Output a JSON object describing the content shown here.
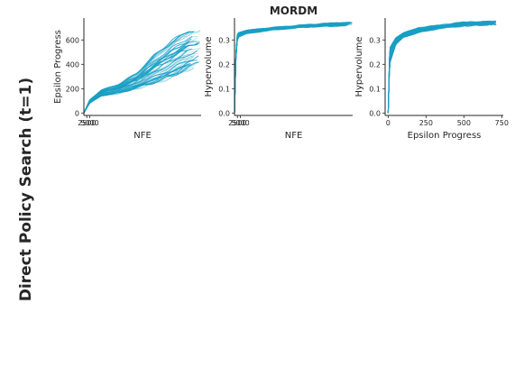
{
  "figure": {
    "row_label": "Direct Policy Search (t=1)",
    "line_color": "#1a9fc4"
  },
  "chart_data": [
    {
      "type": "line",
      "title": "",
      "xlabel": "NFE",
      "ylabel": "Epsilon Progress",
      "xlim": [
        0,
        100000
      ],
      "ylim": [
        -20,
        780
      ],
      "xticks": [
        2500,
        5000
      ],
      "xtick_labels": [
        "2500",
        "5000"
      ],
      "yticks": [
        0,
        200,
        400,
        600
      ],
      "ytick_labels": [
        "0",
        "200",
        "400",
        "600"
      ],
      "n_seeds": 50,
      "series_summary": {
        "x": [
          0,
          5000,
          15000,
          30000,
          45000,
          60000,
          75000,
          90000,
          100000
        ],
        "y_low": [
          0,
          80,
          140,
          160,
          200,
          240,
          290,
          360,
          400
        ],
        "y_high": [
          0,
          110,
          190,
          240,
          330,
          480,
          600,
          690,
          720
        ]
      }
    },
    {
      "type": "line",
      "title": "MORDM",
      "xlabel": "NFE",
      "ylabel": "Hypervolume",
      "xlim": [
        0,
        100000
      ],
      "ylim": [
        -0.01,
        0.39
      ],
      "xticks": [
        2500,
        5000
      ],
      "xtick_labels": [
        "2500",
        "5000"
      ],
      "yticks": [
        0.0,
        0.1,
        0.2,
        0.3
      ],
      "ytick_labels": [
        "0.0",
        "0.1",
        "0.2",
        "0.3"
      ],
      "n_seeds": 50,
      "series_summary": {
        "x": [
          0,
          1500,
          3000,
          10000,
          30000,
          60000,
          100000
        ],
        "y_low": [
          0.0,
          0.28,
          0.31,
          0.325,
          0.34,
          0.355,
          0.365
        ],
        "y_high": [
          0.0,
          0.31,
          0.33,
          0.34,
          0.35,
          0.36,
          0.37
        ]
      }
    },
    {
      "type": "line",
      "title": "",
      "xlabel": "Epsilon Progress",
      "ylabel": "Hypervolume",
      "xlim": [
        -20,
        760
      ],
      "ylim": [
        -0.01,
        0.39
      ],
      "xticks": [
        0,
        250,
        500,
        750
      ],
      "xtick_labels": [
        "0",
        "250",
        "500",
        "750"
      ],
      "yticks": [
        0.0,
        0.1,
        0.2,
        0.3
      ],
      "ytick_labels": [
        "0.0",
        "0.1",
        "0.2",
        "0.3"
      ],
      "n_seeds": 50,
      "series_summary": {
        "x": [
          0,
          10,
          50,
          100,
          200,
          350,
          500,
          720
        ],
        "y_low": [
          0.0,
          0.2,
          0.28,
          0.31,
          0.33,
          0.35,
          0.36,
          0.37
        ],
        "y_high": [
          0.0,
          0.27,
          0.31,
          0.33,
          0.35,
          0.36,
          0.37,
          0.37
        ]
      }
    }
  ]
}
